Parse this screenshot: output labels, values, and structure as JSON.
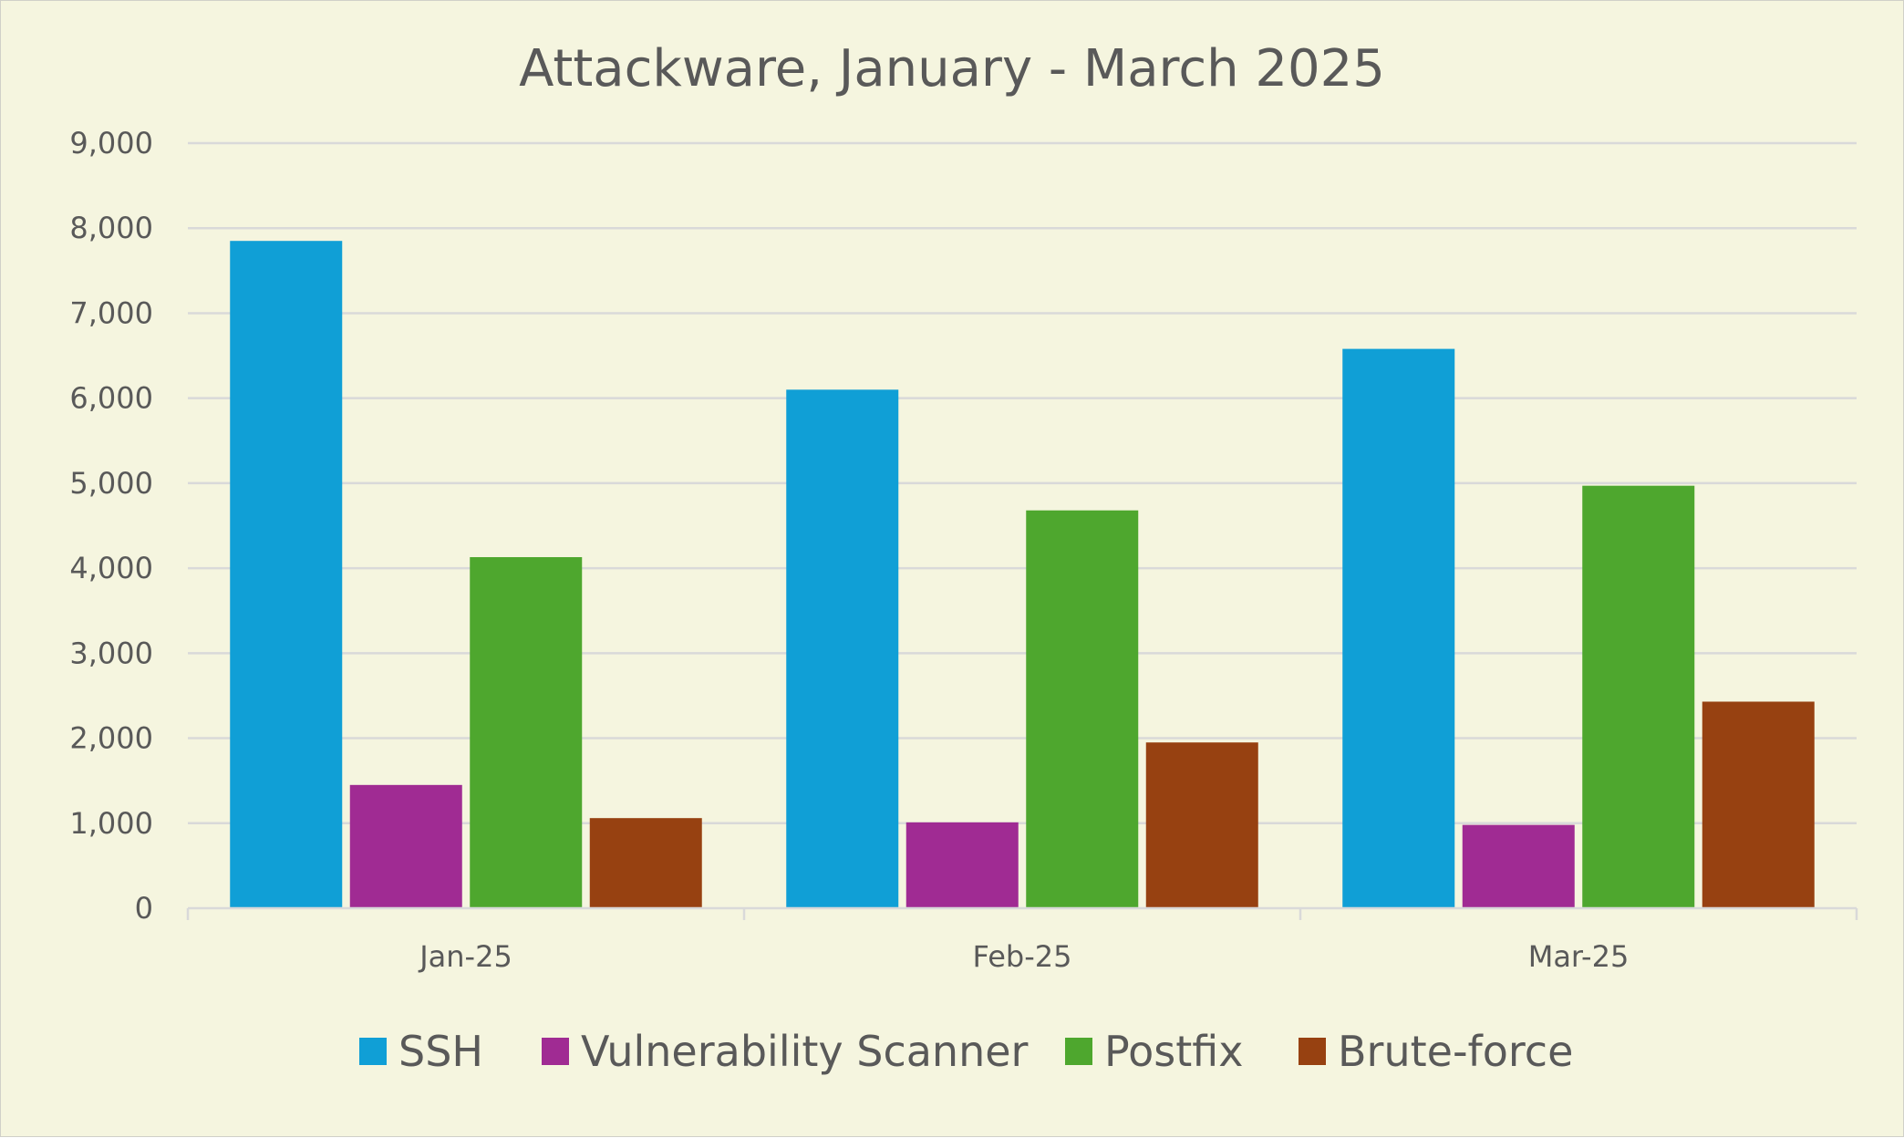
{
  "chart_data": {
    "type": "bar",
    "title": "Attackware, January - March 2025",
    "xlabel": "",
    "ylabel": "",
    "categories": [
      "Jan-25",
      "Feb-25",
      "Mar-25"
    ],
    "ylim": [
      0,
      9000
    ],
    "yticks": [
      0,
      1000,
      2000,
      3000,
      4000,
      5000,
      6000,
      7000,
      8000,
      9000
    ],
    "ytick_labels": [
      "0",
      "1,000",
      "2,000",
      "3,000",
      "4,000",
      "5,000",
      "6,000",
      "7,000",
      "8,000",
      "9,000"
    ],
    "grid": true,
    "legend_position": "bottom",
    "series": [
      {
        "name": "SSH",
        "color": "#109fd6",
        "values": [
          7850,
          6100,
          6580
        ]
      },
      {
        "name": "Vulnerability Scanner",
        "color": "#a02b93",
        "values": [
          1450,
          1010,
          980
        ]
      },
      {
        "name": "Postfix",
        "color": "#4ea72e",
        "values": [
          4130,
          4680,
          4970
        ]
      },
      {
        "name": "Brute-force",
        "color": "#974111",
        "values": [
          1060,
          1950,
          2430
        ]
      }
    ]
  }
}
